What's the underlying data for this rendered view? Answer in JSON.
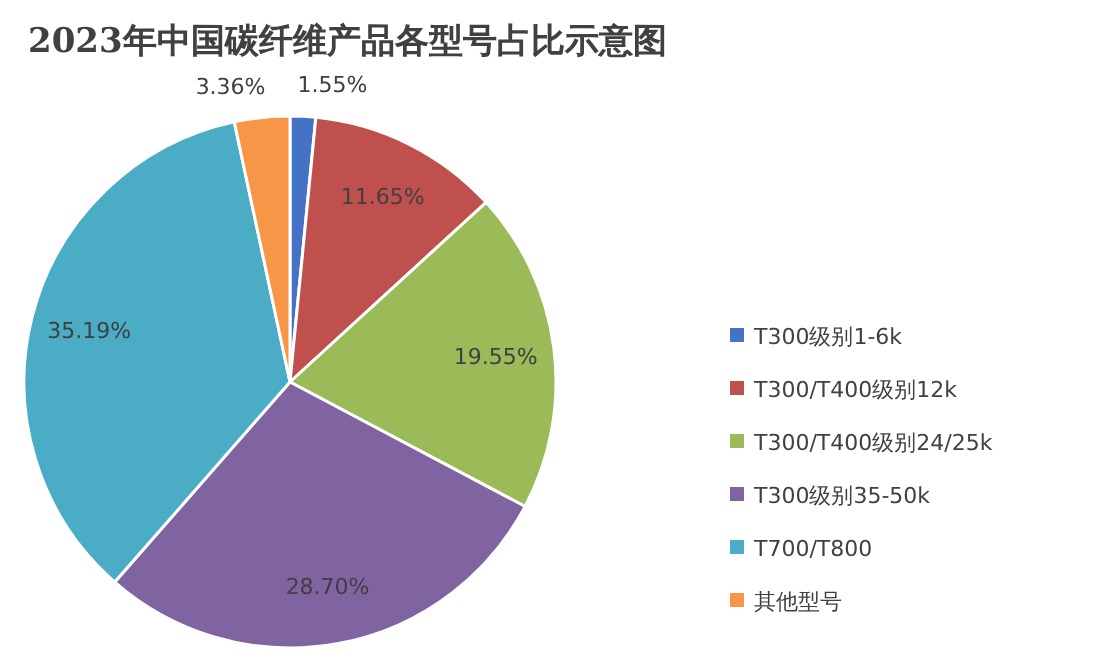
{
  "chart_data": {
    "type": "pie",
    "title": "2023年中国碳纤维产品各型号占比示意图",
    "categories": [
      "T300级别1-6k",
      "T300/T400级别12k",
      "T300/T400级别24/25k",
      "T300级别35-50k",
      "T700/T800",
      "其他型号"
    ],
    "values": [
      1.55,
      11.65,
      19.55,
      28.7,
      35.19,
      3.36
    ],
    "colors": [
      "#4472c4",
      "#c0504d",
      "#9bbb59",
      "#8064a2",
      "#4bacc6",
      "#f79646"
    ],
    "value_labels": [
      "1.55%",
      "11.65%",
      "19.55%",
      "28.70%",
      "35.19%",
      "3.36%"
    ],
    "legend": "right"
  }
}
